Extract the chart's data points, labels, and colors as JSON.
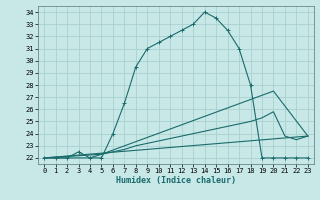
{
  "title": "",
  "xlabel": "Humidex (Indice chaleur)",
  "background_color": "#c8e8e8",
  "line_color": "#1a6b6b",
  "grid_color": "#a8d0d0",
  "xlim": [
    -0.5,
    23.5
  ],
  "ylim": [
    21.5,
    34.5
  ],
  "xticks": [
    0,
    1,
    2,
    3,
    4,
    5,
    6,
    7,
    8,
    9,
    10,
    11,
    12,
    13,
    14,
    15,
    16,
    17,
    18,
    19,
    20,
    21,
    22,
    23
  ],
  "yticks": [
    22,
    23,
    24,
    25,
    26,
    27,
    28,
    29,
    30,
    31,
    32,
    33,
    34
  ],
  "line1_x": [
    0,
    1,
    2,
    3,
    4,
    5,
    6,
    7,
    8,
    9,
    10,
    11,
    12,
    13,
    14,
    15,
    16,
    17,
    18,
    19,
    20,
    21,
    22,
    23
  ],
  "line1_y": [
    22,
    22,
    22,
    22.5,
    22,
    22,
    24,
    26.5,
    29.5,
    31,
    31.5,
    32,
    32.5,
    33,
    34,
    33.5,
    32.5,
    31,
    28,
    22,
    22,
    22,
    22,
    22
  ],
  "line2_x": [
    0,
    23
  ],
  "line2_y": [
    22,
    23.8
  ],
  "line3_x": [
    0,
    5,
    20,
    23
  ],
  "line3_y": [
    22,
    22.3,
    27.5,
    23.8
  ],
  "line4_x": [
    0,
    1,
    2,
    3,
    4,
    5,
    6,
    7,
    8,
    9,
    10,
    11,
    12,
    13,
    14,
    15,
    16,
    17,
    18,
    19,
    20,
    21,
    22,
    23
  ],
  "line4_y": [
    22,
    22,
    22,
    22,
    22,
    22.3,
    22.5,
    22.7,
    23,
    23.2,
    23.4,
    23.6,
    23.8,
    24,
    24.2,
    24.4,
    24.6,
    24.8,
    25,
    25.3,
    25.8,
    23.8,
    23.5,
    23.8
  ]
}
